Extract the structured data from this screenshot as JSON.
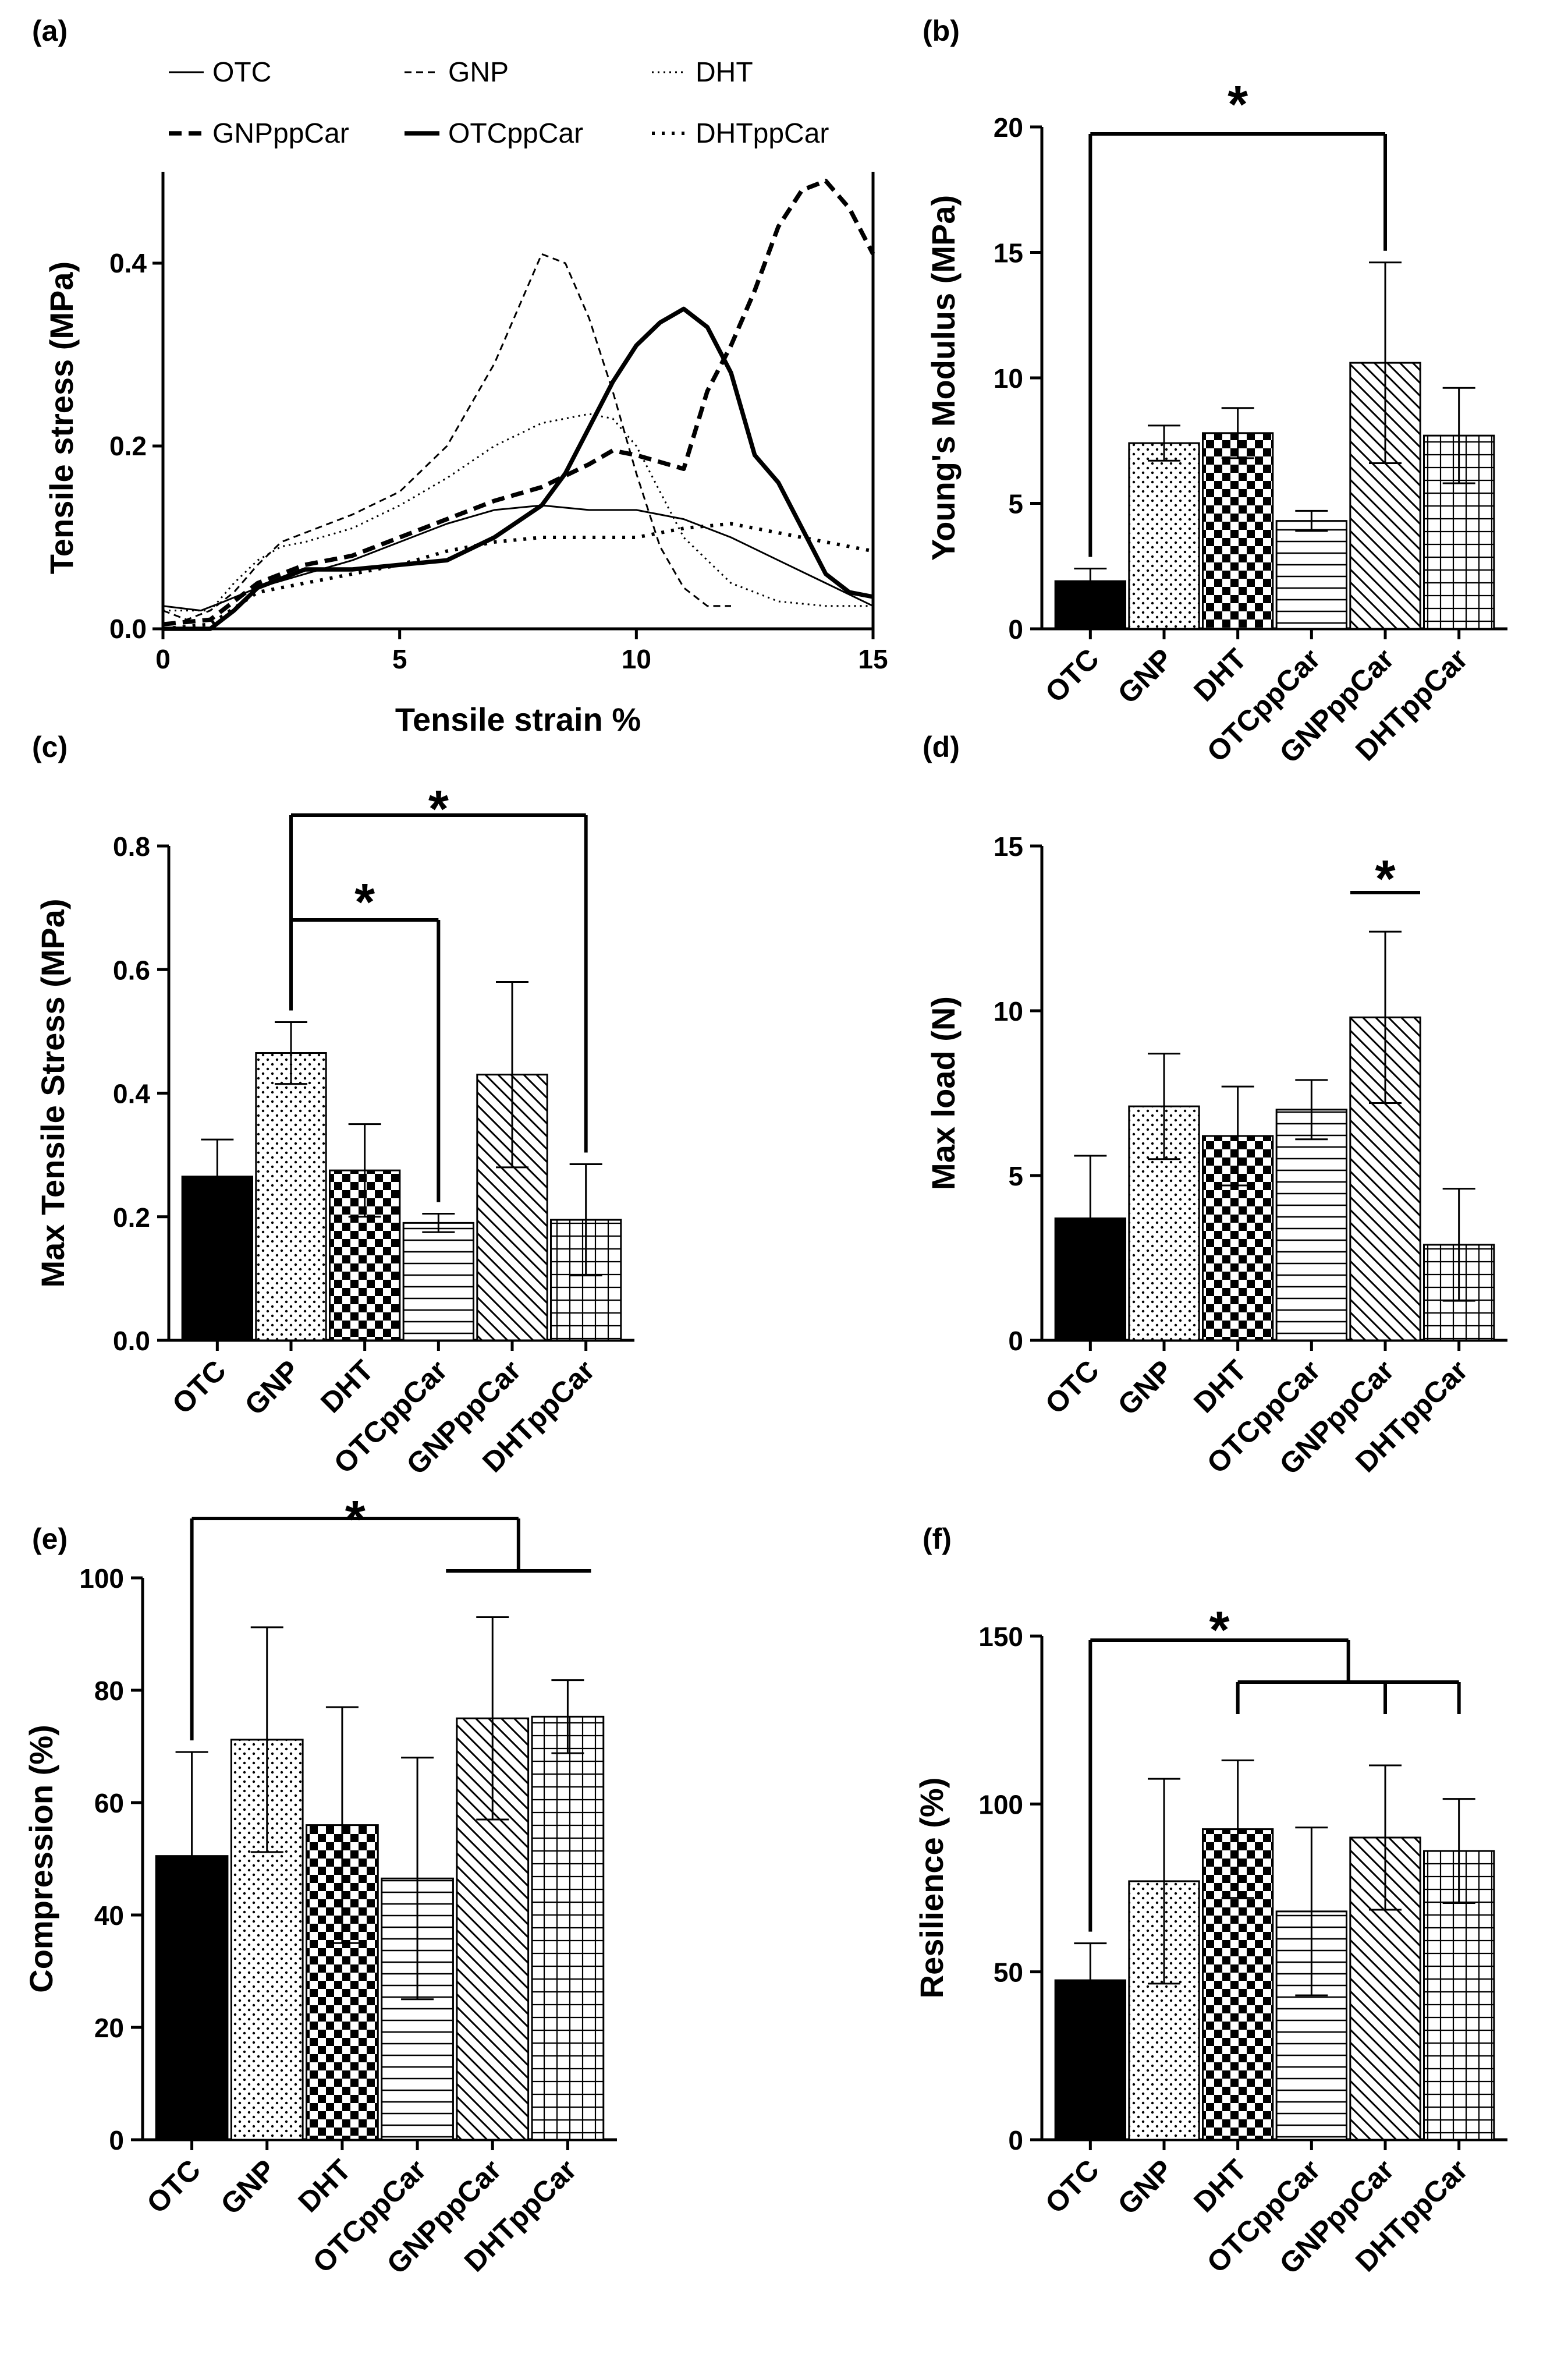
{
  "figure": {
    "categories": [
      "OTC",
      "GNP",
      "DHT",
      "OTCppCar",
      "GNPppCar",
      "DHTppCar"
    ],
    "patterns": [
      "solid-black",
      "dots",
      "checker",
      "horizontal-lines",
      "diagonal-lines",
      "grid"
    ]
  },
  "chart_data": [
    {
      "panel": "(a)",
      "type": "line",
      "xlabel": "Tensile strain %",
      "ylabel": "Tensile stress (MPa)",
      "xlim": [
        0,
        15
      ],
      "ylim": [
        0,
        0.5
      ],
      "xticks": [
        "0",
        "5",
        "10",
        "15"
      ],
      "yticks": [
        "0.0",
        "0.2",
        "0.4"
      ],
      "series": [
        {
          "name": "OTC",
          "style": "thin-solid",
          "x": [
            0,
            0.8,
            1.3,
            2,
            3,
            4,
            5,
            6,
            7,
            8,
            9,
            10,
            11,
            12,
            13,
            14,
            15
          ],
          "y": [
            0.025,
            0.02,
            0.03,
            0.045,
            0.06,
            0.075,
            0.095,
            0.115,
            0.13,
            0.135,
            0.13,
            0.13,
            0.12,
            0.1,
            0.075,
            0.05,
            0.025
          ]
        },
        {
          "name": "GNP",
          "style": "thin-dashed",
          "x": [
            0,
            0.5,
            1,
            1.5,
            2,
            2.5,
            3,
            4,
            5,
            6,
            7,
            7.5,
            8,
            8.5,
            9,
            9.5,
            10,
            10.5,
            11,
            11.5,
            12
          ],
          "y": [
            0.02,
            0.01,
            0.02,
            0.04,
            0.07,
            0.095,
            0.105,
            0.125,
            0.15,
            0.2,
            0.29,
            0.35,
            0.41,
            0.4,
            0.34,
            0.26,
            0.17,
            0.09,
            0.045,
            0.025,
            0.025
          ]
        },
        {
          "name": "DHT",
          "style": "thin-dotted",
          "x": [
            0,
            1,
            1.5,
            2,
            2.5,
            3,
            4,
            5,
            6,
            7,
            8,
            9,
            9.5,
            10,
            10.5,
            11,
            12,
            13,
            14,
            15
          ],
          "y": [
            0.02,
            0.02,
            0.05,
            0.075,
            0.09,
            0.095,
            0.11,
            0.135,
            0.165,
            0.2,
            0.225,
            0.235,
            0.23,
            0.2,
            0.15,
            0.1,
            0.05,
            0.03,
            0.025,
            0.025
          ]
        },
        {
          "name": "GNPppCar",
          "style": "thick-dashed",
          "x": [
            0,
            1,
            2,
            3,
            4,
            5,
            6,
            7,
            8,
            9,
            9.5,
            10,
            11,
            11.5,
            12,
            12.5,
            13,
            13.5,
            14,
            14.5,
            15
          ],
          "y": [
            0.005,
            0.01,
            0.05,
            0.07,
            0.08,
            0.1,
            0.12,
            0.14,
            0.155,
            0.18,
            0.195,
            0.19,
            0.175,
            0.26,
            0.31,
            0.37,
            0.44,
            0.48,
            0.49,
            0.46,
            0.41
          ]
        },
        {
          "name": "OTCppCar",
          "style": "thick-solid",
          "x": [
            0,
            1,
            1.5,
            2,
            3,
            4,
            5,
            6,
            7,
            8,
            8.5,
            9,
            9.5,
            10,
            10.5,
            11,
            11.5,
            12,
            12.5,
            13,
            13.5,
            14,
            14.5,
            15
          ],
          "y": [
            0.0,
            0.0,
            0.02,
            0.045,
            0.065,
            0.065,
            0.07,
            0.075,
            0.1,
            0.135,
            0.17,
            0.22,
            0.27,
            0.31,
            0.335,
            0.35,
            0.33,
            0.28,
            0.19,
            0.16,
            0.11,
            0.06,
            0.04,
            0.035
          ]
        },
        {
          "name": "DHTppCar",
          "style": "thick-dotted",
          "x": [
            0,
            1,
            2,
            3,
            4,
            5,
            6,
            7,
            8,
            9,
            10,
            11,
            12,
            13,
            14,
            15
          ],
          "y": [
            0.0,
            0.005,
            0.04,
            0.05,
            0.06,
            0.07,
            0.085,
            0.095,
            0.1,
            0.1,
            0.1,
            0.11,
            0.115,
            0.105,
            0.095,
            0.085
          ]
        }
      ]
    },
    {
      "panel": "(b)",
      "type": "bar",
      "ylabel": "Young's Modulus  (MPa)",
      "ylim": [
        0,
        20
      ],
      "yticks": [
        "0",
        "5",
        "10",
        "15",
        "20"
      ],
      "values": [
        1.9,
        7.4,
        7.8,
        4.3,
        10.6,
        7.7
      ],
      "errors": [
        0.5,
        0.7,
        1.0,
        0.4,
        4.0,
        1.9
      ],
      "significance": [
        {
          "label": "*",
          "from": [
            0
          ],
          "to": [
            4
          ]
        }
      ]
    },
    {
      "panel": "(c)",
      "type": "bar",
      "ylabel": "Max Tensile Stress  (MPa)",
      "ylim": [
        0,
        0.8
      ],
      "yticks": [
        "0.0",
        "0.2",
        "0.4",
        "0.6",
        "0.8"
      ],
      "values": [
        0.265,
        0.465,
        0.275,
        0.19,
        0.43,
        0.195
      ],
      "errors": [
        0.06,
        0.05,
        0.075,
        0.015,
        0.15,
        0.09
      ],
      "significance": [
        {
          "label": "*",
          "from": [
            1
          ],
          "to": [
            3
          ]
        },
        {
          "label": "*",
          "from": [
            1
          ],
          "to": [
            5
          ]
        }
      ]
    },
    {
      "panel": "(d)",
      "type": "bar",
      "ylabel": "Max load  (N)",
      "ylim": [
        0,
        15
      ],
      "yticks": [
        "0",
        "5",
        "10",
        "15"
      ],
      "values": [
        3.7,
        7.1,
        6.2,
        7.0,
        9.8,
        2.9
      ],
      "errors": [
        1.9,
        1.6,
        1.5,
        0.9,
        2.6,
        1.7
      ],
      "significance": [
        {
          "label": "*",
          "from": [
            4
          ],
          "to": [
            4
          ]
        }
      ]
    },
    {
      "panel": "(e)",
      "type": "bar",
      "ylabel": "Compression  (%)",
      "ylim": [
        0,
        100
      ],
      "yticks": [
        "0",
        "20",
        "40",
        "60",
        "80",
        "100"
      ],
      "values": [
        50.5,
        71.2,
        56.0,
        46.5,
        75.0,
        75.3
      ],
      "errors": [
        18.5,
        20.0,
        21.0,
        21.5,
        18.0,
        6.5
      ],
      "significance": [
        {
          "label": "*",
          "from": [
            0
          ],
          "to": [
            4,
            5
          ]
        }
      ]
    },
    {
      "panel": "(f)",
      "type": "bar",
      "ylabel": "Resilience  (%)",
      "ylim": [
        0,
        150
      ],
      "yticks": [
        "0",
        "50",
        "100",
        "150"
      ],
      "values": [
        47.5,
        77.0,
        92.5,
        68.0,
        90.0,
        86.0
      ],
      "errors": [
        11.0,
        30.5,
        20.5,
        25.0,
        21.5,
        15.5
      ],
      "significance": [
        {
          "label": "*",
          "from": [
            0
          ],
          "to": [
            2,
            4,
            5
          ]
        }
      ]
    }
  ]
}
